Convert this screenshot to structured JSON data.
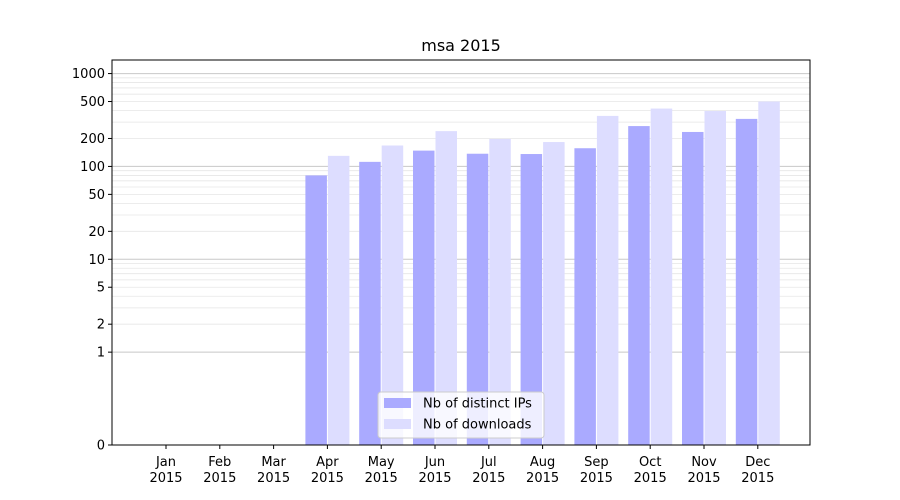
{
  "chart_data": {
    "type": "bar",
    "title": "msa 2015",
    "yscale": "symlog",
    "ylim": [
      0,
      1400
    ],
    "yticks": [
      0,
      1,
      2,
      5,
      10,
      20,
      50,
      100,
      200,
      500,
      1000
    ],
    "ytick_labels": [
      "0",
      "1",
      "2",
      "5",
      "10",
      "20",
      "50",
      "100",
      "200",
      "500",
      "1000"
    ],
    "categories": [
      [
        "Jan",
        "2015"
      ],
      [
        "Feb",
        "2015"
      ],
      [
        "Mar",
        "2015"
      ],
      [
        "Apr",
        "2015"
      ],
      [
        "May",
        "2015"
      ],
      [
        "Jun",
        "2015"
      ],
      [
        "Jul",
        "2015"
      ],
      [
        "Aug",
        "2015"
      ],
      [
        "Sep",
        "2015"
      ],
      [
        "Oct",
        "2015"
      ],
      [
        "Nov",
        "2015"
      ],
      [
        "Dec",
        "2015"
      ]
    ],
    "series": [
      {
        "name": "Nb of distinct IPs",
        "color": "#aaaaff",
        "values": [
          0,
          0,
          0,
          80,
          112,
          148,
          137,
          136,
          157,
          272,
          235,
          325
        ]
      },
      {
        "name": "Nb of downloads",
        "color": "#ddddff",
        "values": [
          0,
          0,
          0,
          130,
          168,
          240,
          198,
          183,
          350,
          420,
          395,
          500
        ]
      }
    ],
    "grid": true,
    "legend_position": "bottom-center"
  }
}
